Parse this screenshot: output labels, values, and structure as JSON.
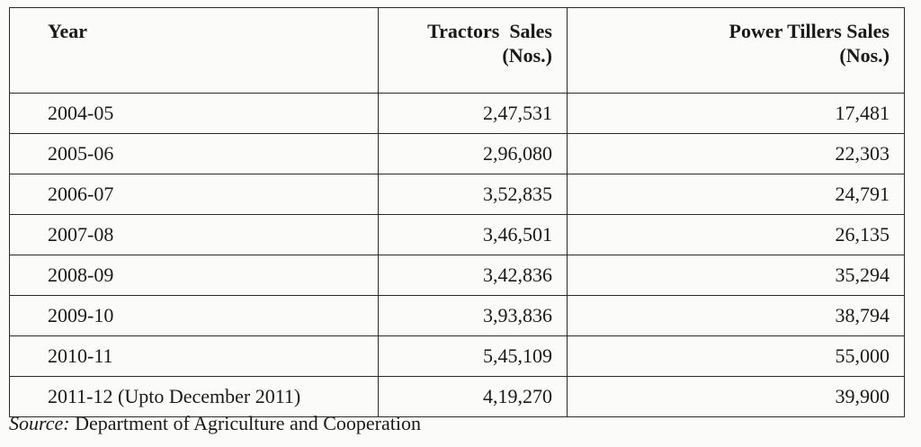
{
  "table": {
    "headers": {
      "year": "Year",
      "tractors_line1": "Tractors  Sales",
      "tractors_line2": "(Nos.)",
      "tillers_line1": "Power Tillers Sales",
      "tillers_line2": "(Nos.)"
    },
    "rows": [
      {
        "year": "2004-05",
        "tractors": "2,47,531",
        "tillers": "17,481"
      },
      {
        "year": "2005-06",
        "tractors": "2,96,080",
        "tillers": "22,303"
      },
      {
        "year": "2006-07",
        "tractors": "3,52,835",
        "tillers": "24,791"
      },
      {
        "year": "2007-08",
        "tractors": "3,46,501",
        "tillers": "26,135"
      },
      {
        "year": "2008-09",
        "tractors": "3,42,836",
        "tillers": "35,294"
      },
      {
        "year": "2009-10",
        "tractors": "3,93,836",
        "tillers": "38,794"
      },
      {
        "year": "2010-11",
        "tractors": "5,45,109",
        "tillers": "55,000"
      },
      {
        "year": "2011-12 (Upto December 2011)",
        "tractors": "4,19,270",
        "tillers": "39,900"
      }
    ]
  },
  "source": {
    "label": "Source:",
    "text": " Department of Agriculture and Cooperation"
  }
}
